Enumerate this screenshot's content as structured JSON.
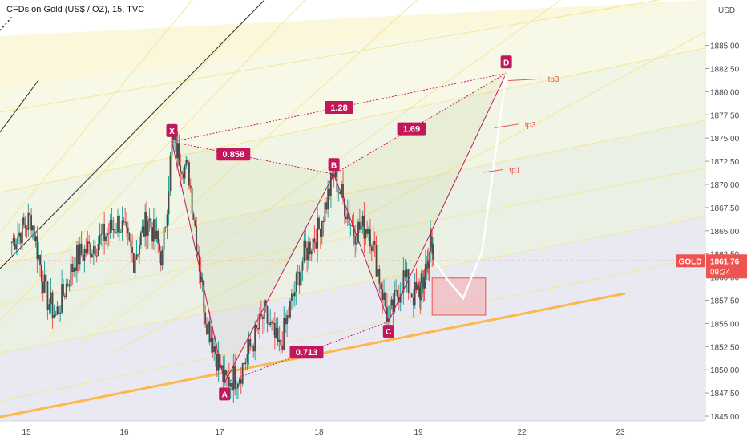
{
  "header": {
    "title": "CFDs on Gold (US$ / OZ), 15, TVC"
  },
  "price_axis": {
    "currency": "USD",
    "ticks": [
      "1885.00",
      "1882.50",
      "1880.00",
      "1877.50",
      "1875.00",
      "1872.50",
      "1870.00",
      "1867.50",
      "1865.00",
      "1862.50",
      "1860.00",
      "1857.50",
      "1855.00",
      "1852.50",
      "1850.00",
      "1847.50",
      "1845.00"
    ],
    "symbol_tag": "GOLD",
    "last_price": "1861.76",
    "countdown": "09:24"
  },
  "time_axis": {
    "ticks": [
      "15",
      "16",
      "17",
      "18",
      "19",
      "22",
      "23"
    ]
  },
  "colors": {
    "up": "#26a69a",
    "down": "#ef5350",
    "candle_body": "#4a4a4a",
    "pattern": "#c2185b",
    "support": "#ffb74d",
    "channel": "#f2e79a",
    "projection": "#ffffff",
    "target": "#ef5350",
    "label_bg": "#c2185b"
  },
  "harmonic": {
    "points": [
      {
        "label": "X",
        "t": 16.5,
        "p": 1874.6
      },
      {
        "label": "A",
        "t": 17.05,
        "p": 1848.6
      },
      {
        "label": "B",
        "t": 18.15,
        "p": 1871.1
      },
      {
        "label": "C",
        "t": 18.7,
        "p": 1855.2
      },
      {
        "label": "D",
        "t": 21.55,
        "p": 1882.0
      }
    ],
    "ratios": [
      "0.858",
      "0.713",
      "1.28",
      "1.69"
    ]
  },
  "targets": [
    "tp1",
    "tp3",
    "tp3"
  ],
  "chart_data": {
    "type": "candlestick",
    "title": "CFDs on Gold (US$ / OZ), 15, TVC",
    "xlabel": "",
    "ylabel": "USD",
    "ylim": [
      1844.6,
      1886.5
    ],
    "x_ticks": [
      "15",
      "16",
      "17",
      "18",
      "19",
      "22",
      "23"
    ],
    "last_price": 1861.76,
    "series": [
      {
        "name": "GOLD",
        "ohlc_pivots": [
          {
            "t": 14.85,
            "p": 1863.8
          },
          {
            "t": 15.05,
            "p": 1866.4
          },
          {
            "t": 15.2,
            "p": 1858.0
          },
          {
            "t": 15.3,
            "p": 1855.8
          },
          {
            "t": 15.5,
            "p": 1862.0
          },
          {
            "t": 15.75,
            "p": 1864.0
          },
          {
            "t": 15.95,
            "p": 1866.0
          },
          {
            "t": 16.1,
            "p": 1862.0
          },
          {
            "t": 16.25,
            "p": 1866.5
          },
          {
            "t": 16.4,
            "p": 1862.0
          },
          {
            "t": 16.5,
            "p": 1874.6
          },
          {
            "t": 16.68,
            "p": 1871.0
          },
          {
            "t": 16.85,
            "p": 1856.0
          },
          {
            "t": 17.05,
            "p": 1848.6
          },
          {
            "t": 17.2,
            "p": 1849.6
          },
          {
            "t": 17.45,
            "p": 1856.0
          },
          {
            "t": 17.6,
            "p": 1852.2
          },
          {
            "t": 17.85,
            "p": 1862.4
          },
          {
            "t": 18.0,
            "p": 1865.2
          },
          {
            "t": 18.15,
            "p": 1871.1
          },
          {
            "t": 18.35,
            "p": 1865.0
          },
          {
            "t": 18.5,
            "p": 1865.6
          },
          {
            "t": 18.7,
            "p": 1855.2
          },
          {
            "t": 18.85,
            "p": 1860.0
          },
          {
            "t": 18.95,
            "p": 1858.0
          },
          {
            "t": 19.1,
            "p": 1859.0
          },
          {
            "t": 19.25,
            "p": 1861.0
          },
          {
            "t": 19.35,
            "p": 1863.6
          },
          {
            "t": 19.45,
            "p": 1861.76
          }
        ]
      }
    ],
    "annotations": {
      "pattern_ratios": [
        {
          "label": "0.858",
          "from": "XA",
          "to": "B"
        },
        {
          "label": "0.713",
          "from": "AB",
          "to": "C"
        },
        {
          "label": "1.28",
          "from": "X",
          "to": "D"
        },
        {
          "label": "1.69",
          "from": "BC",
          "to": "D"
        }
      ],
      "target_zone": {
        "t0": 19.4,
        "t1": 20.95,
        "p0": 1855.9,
        "p1": 1859.9
      },
      "projection_path": [
        {
          "t": 19.45,
          "p": 1861.8
        },
        {
          "t": 19.85,
          "p": 1859.7
        },
        {
          "t": 20.3,
          "p": 1857.7
        },
        {
          "t": 20.85,
          "p": 1862.8
        },
        {
          "t": 21.55,
          "p": 1882.0
        }
      ],
      "targets": [
        {
          "label": "tp1",
          "t0": 20.9,
          "t1": 21.45,
          "p": 1871.3,
          "p_end": 1871.6
        },
        {
          "label": "tp3",
          "t0": 21.2,
          "t1": 21.9,
          "p": 1876.1,
          "p_end": 1876.5
        },
        {
          "label": "tp3",
          "t0": 21.6,
          "t1": 22.2,
          "p": 1881.2,
          "p_end": 1881.4
        }
      ]
    },
    "grid": false
  }
}
